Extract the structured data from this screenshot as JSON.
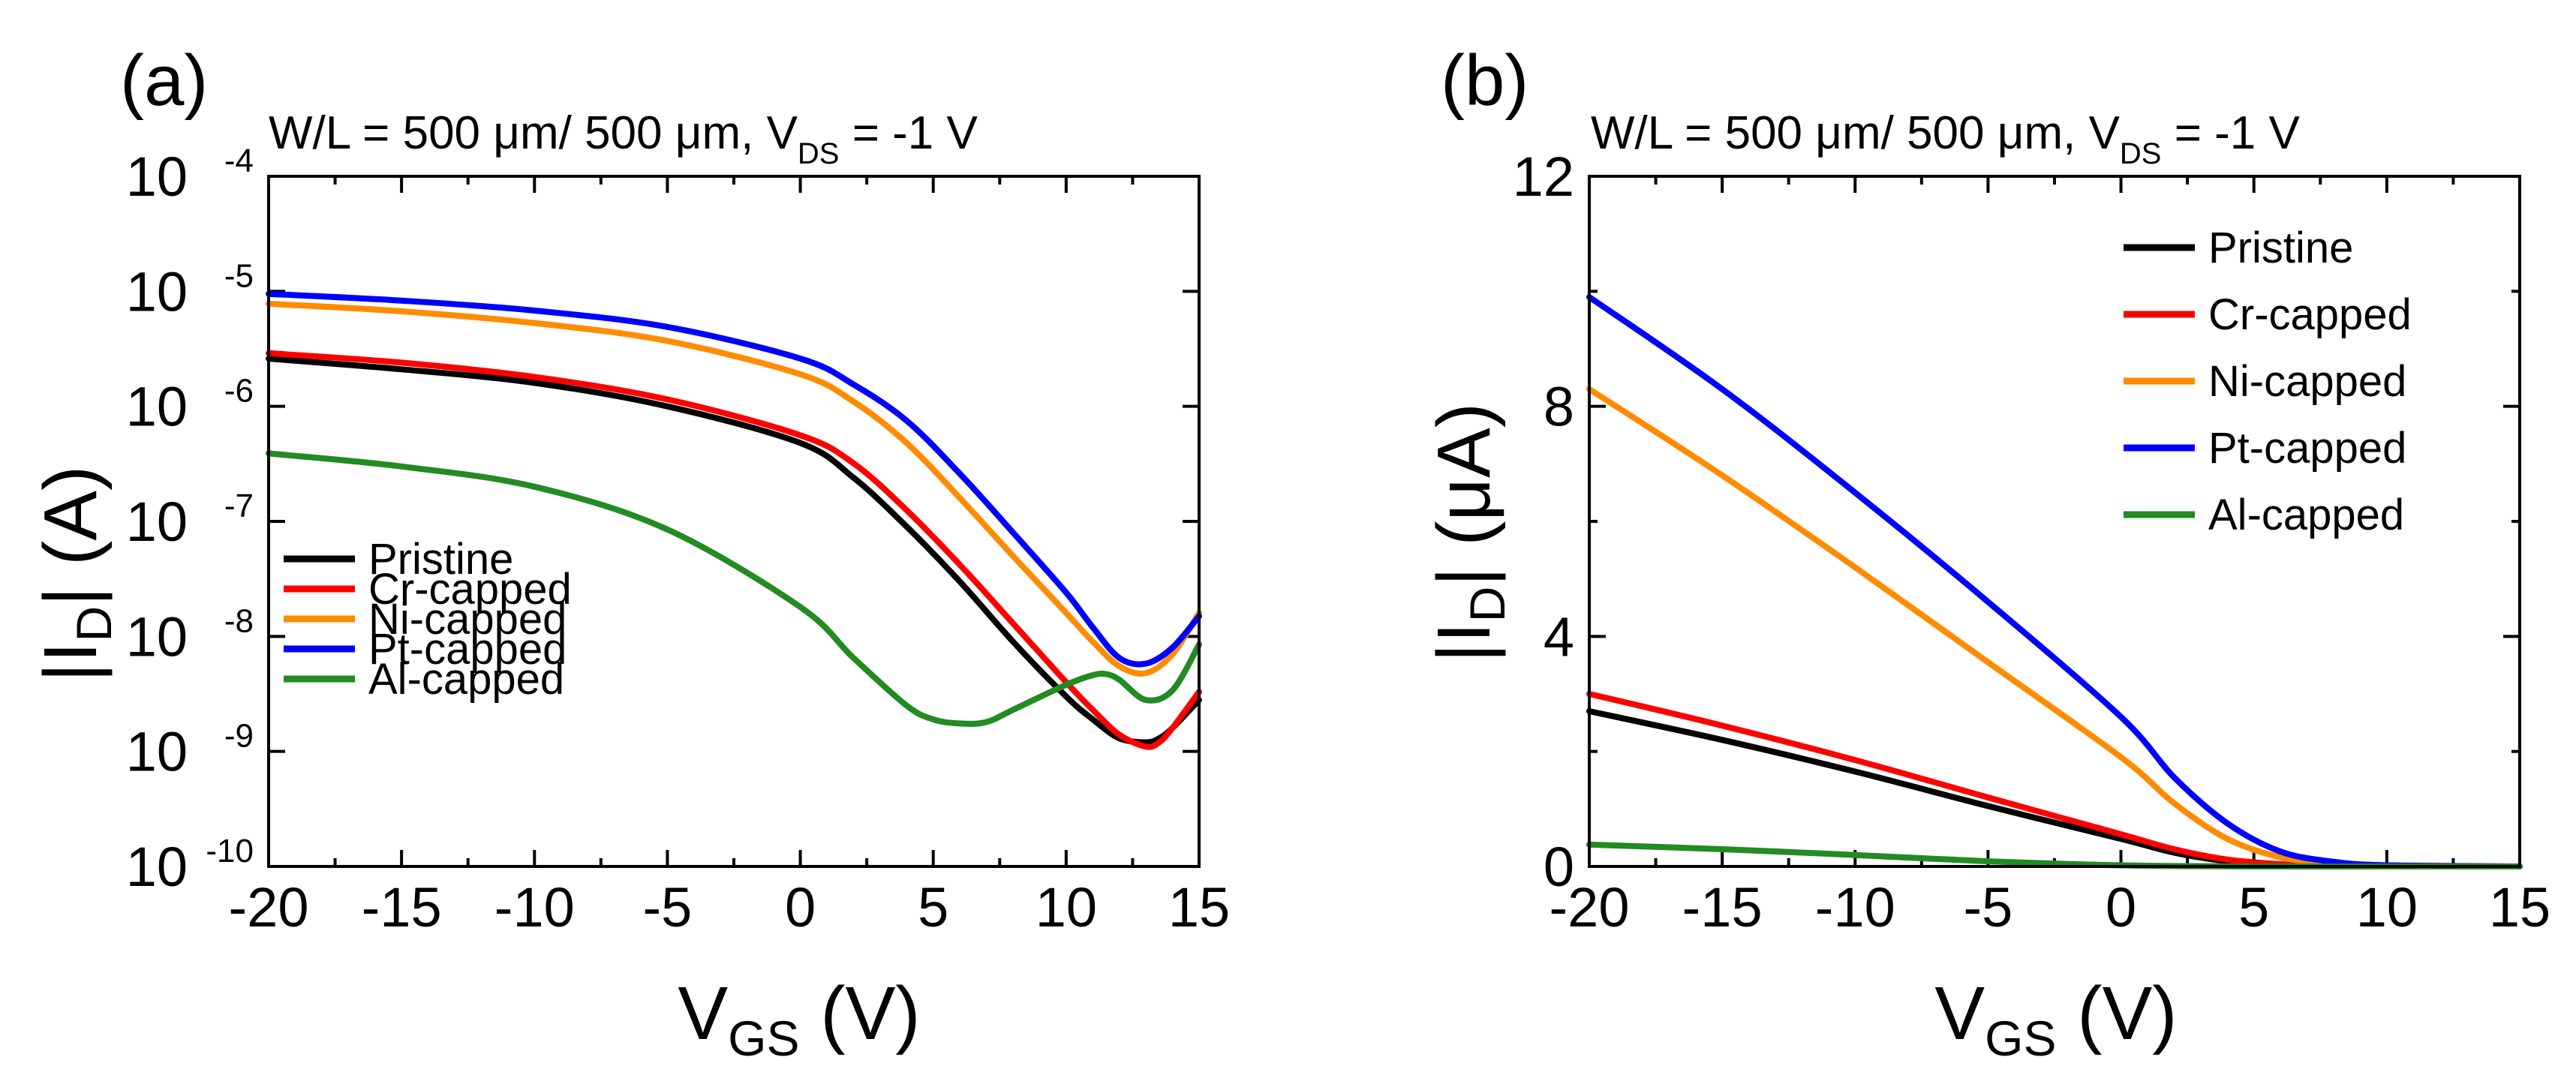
{
  "chart_data": [
    {
      "panel": "(a)",
      "type": "line",
      "title_prefix": "W/L = 500 μm/ 500 μm, V",
      "title_sub": "DS",
      "title_suffix": " = -1 V",
      "xlabel_main": "V",
      "xlabel_sub": "GS",
      "xlabel_unit": " (V)",
      "ylabel_left": "|I",
      "ylabel_sub": "D",
      "ylabel_right": "| (A)",
      "yscale": "log",
      "xlim": [
        -20,
        15
      ],
      "ylim_exp": [
        -10,
        -4
      ],
      "x_ticks": [
        -20,
        -15,
        -10,
        -5,
        0,
        5,
        10,
        15
      ],
      "y_tick_base": "10",
      "y_tick_exponents": [
        "-10",
        "-9",
        "-8",
        "-7",
        "-6",
        "-5",
        "-4"
      ],
      "legend_position": "lower-left",
      "series": [
        {
          "name": "Pristine",
          "color": "#000000",
          "x": [
            -20,
            -15,
            -10,
            -5,
            0,
            2,
            4,
            6,
            8,
            10,
            11,
            12,
            13,
            13.5,
            14,
            15
          ],
          "y": [
            2.6e-06,
            2.1e-06,
            1.6e-06,
            1e-06,
            4.8e-07,
            2.4e-07,
            9e-08,
            3e-08,
            9e-09,
            3e-09,
            1.9e-09,
            1.3e-09,
            1.2e-09,
            1.3e-09,
            1.6e-09,
            2.8e-09
          ]
        },
        {
          "name": "Cr-capped",
          "color": "#ff0000",
          "x": [
            -20,
            -15,
            -10,
            -5,
            0,
            2,
            4,
            6,
            8,
            10,
            11,
            12,
            13,
            13.5,
            14,
            15
          ],
          "y": [
            2.9e-06,
            2.4e-06,
            1.8e-06,
            1.15e-06,
            5.6e-07,
            3.2e-07,
            1.25e-07,
            4.2e-08,
            1.3e-08,
            4e-09,
            2.3e-09,
            1.4e-09,
            1.1e-09,
            1.2e-09,
            1.6e-09,
            3.3e-09
          ]
        },
        {
          "name": "Ni-capped",
          "color": "#ff8c00",
          "x": [
            -20,
            -15,
            -10,
            -5,
            0,
            2,
            4,
            6,
            8,
            10,
            11,
            12,
            13,
            14,
            15
          ],
          "y": [
            7.8e-06,
            6.7e-06,
            5.3e-06,
            3.7e-06,
            1.9e-06,
            1.1e-06,
            4.8e-07,
            1.6e-07,
            5e-08,
            1.6e-08,
            9e-09,
            5.5e-09,
            4.8e-09,
            7e-09,
            1.6e-08
          ]
        },
        {
          "name": "Pt-capped",
          "color": "#0000ff",
          "x": [
            -20,
            -15,
            -10,
            -5,
            0,
            2,
            4,
            6,
            8,
            10,
            11,
            12,
            13,
            14,
            15
          ],
          "y": [
            9.5e-06,
            8.3e-06,
            6.8e-06,
            4.9e-06,
            2.6e-06,
            1.55e-06,
            7.5e-07,
            2.6e-07,
            8e-08,
            2.4e-08,
            1.2e-08,
            6.5e-09,
            5.8e-09,
            8e-09,
            1.5e-08
          ]
        },
        {
          "name": "Al-capped",
          "color": "#228b22",
          "x": [
            -20,
            -15,
            -10,
            -5,
            0,
            2,
            4,
            5,
            6,
            7,
            8,
            10,
            11,
            11.5,
            12,
            13,
            14,
            15
          ],
          "y": [
            3.9e-07,
            3e-07,
            2e-07,
            8.5e-08,
            1.8e-08,
            6.5e-09,
            2.5e-09,
            1.9e-09,
            1.75e-09,
            1.8e-09,
            2.3e-09,
            3.8e-09,
            4.6e-09,
            4.7e-09,
            4.2e-09,
            2.8e-09,
            3.4e-09,
            8.5e-09
          ]
        }
      ]
    },
    {
      "panel": "(b)",
      "type": "line",
      "title_prefix": "W/L = 500 μm/ 500 μm, V",
      "title_sub": "DS",
      "title_suffix": " = -1 V",
      "xlabel_main": "V",
      "xlabel_sub": "GS",
      "xlabel_unit": " (V)",
      "ylabel_left": "|I",
      "ylabel_sub": "D",
      "ylabel_right": "| (μA)",
      "yscale": "linear",
      "xlim": [
        -20,
        15
      ],
      "ylim": [
        0,
        12
      ],
      "x_ticks": [
        -20,
        -15,
        -10,
        -5,
        0,
        5,
        10,
        15
      ],
      "y_ticks": [
        0,
        4,
        8,
        12
      ],
      "legend_position": "top-right",
      "series": [
        {
          "name": "Pristine",
          "color": "#000000",
          "x": [
            -20,
            -15,
            -10,
            -5,
            0,
            2,
            4,
            6,
            8,
            10,
            15
          ],
          "y": [
            2.7,
            2.2,
            1.65,
            1.05,
            0.48,
            0.24,
            0.09,
            0.03,
            0.01,
            0.0,
            0.0
          ]
        },
        {
          "name": "Cr-capped",
          "color": "#ff0000",
          "x": [
            -20,
            -15,
            -10,
            -5,
            0,
            2,
            4,
            6,
            8,
            10,
            15
          ],
          "y": [
            3.0,
            2.45,
            1.85,
            1.2,
            0.56,
            0.3,
            0.12,
            0.04,
            0.01,
            0.0,
            0.0
          ]
        },
        {
          "name": "Ni-capped",
          "color": "#ff8c00",
          "x": [
            -20,
            -15,
            -10,
            -5,
            0,
            2,
            4,
            6,
            8,
            10,
            15
          ],
          "y": [
            8.3,
            6.8,
            5.2,
            3.55,
            1.9,
            1.1,
            0.48,
            0.16,
            0.05,
            0.02,
            0.0
          ]
        },
        {
          "name": "Pt-capped",
          "color": "#0000ff",
          "x": [
            -20,
            -15,
            -10,
            -5,
            0,
            2,
            4,
            6,
            8,
            10,
            15
          ],
          "y": [
            9.9,
            8.3,
            6.5,
            4.6,
            2.6,
            1.55,
            0.75,
            0.26,
            0.08,
            0.02,
            0.0
          ]
        },
        {
          "name": "Al-capped",
          "color": "#228b22",
          "x": [
            -20,
            -15,
            -10,
            -5,
            0,
            5,
            10,
            15
          ],
          "y": [
            0.38,
            0.3,
            0.2,
            0.09,
            0.02,
            0.0,
            0.0,
            0.0
          ]
        }
      ]
    }
  ]
}
